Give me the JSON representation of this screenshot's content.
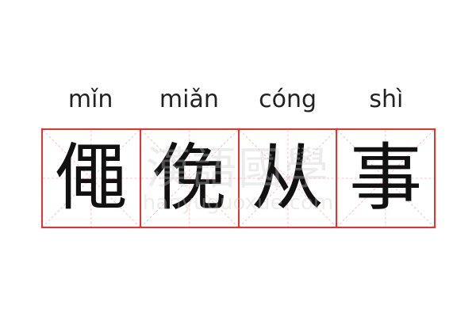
{
  "pinyin": [
    "mǐn",
    "miǎn",
    "cóng",
    "shì"
  ],
  "characters": [
    "僶",
    "俛",
    "从",
    "事"
  ],
  "watermark": {
    "chinese": "漢語國學",
    "url": "hanyuguoxue.com"
  },
  "colors": {
    "grid_border": "#e8322c",
    "guide_lines": "#f3b5b2",
    "text": "#111111"
  }
}
